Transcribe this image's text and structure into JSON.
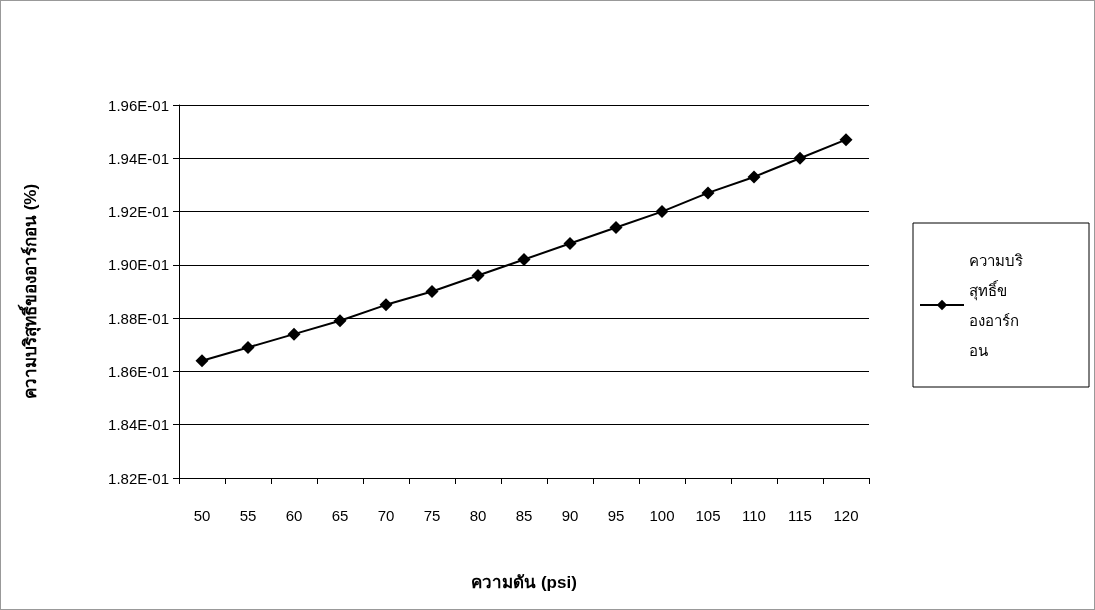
{
  "chart_data": {
    "type": "line",
    "xlabel": "ความดัน (psi)",
    "ylabel": "ความบริสุทธิ์ของอาร์กอน (%)",
    "categories": [
      "50",
      "55",
      "60",
      "65",
      "70",
      "75",
      "80",
      "85",
      "90",
      "95",
      "100",
      "105",
      "110",
      "115",
      "120"
    ],
    "series": [
      {
        "name": "ความบริสุทธิ์ของอาร์กอน",
        "color": "#000000",
        "values": [
          0.1864,
          0.1869,
          0.1874,
          0.1879,
          0.1885,
          0.189,
          0.1896,
          0.1902,
          0.1908,
          0.1914,
          0.192,
          0.1927,
          0.1933,
          0.194,
          0.1947
        ]
      }
    ],
    "ylim": [
      0.182,
      0.196
    ],
    "yticks": [
      {
        "value": 0.182,
        "label": "1.82E-01"
      },
      {
        "value": 0.184,
        "label": "1.84E-01"
      },
      {
        "value": 0.186,
        "label": "1.86E-01"
      },
      {
        "value": 0.188,
        "label": "1.88E-01"
      },
      {
        "value": 0.19,
        "label": "1.90E-01"
      },
      {
        "value": 0.192,
        "label": "1.92E-01"
      },
      {
        "value": 0.194,
        "label": "1.94E-01"
      },
      {
        "value": 0.196,
        "label": "1.96E-01"
      }
    ],
    "grid": "y",
    "legend": "right",
    "marker": "diamond",
    "line_style": "solid"
  }
}
